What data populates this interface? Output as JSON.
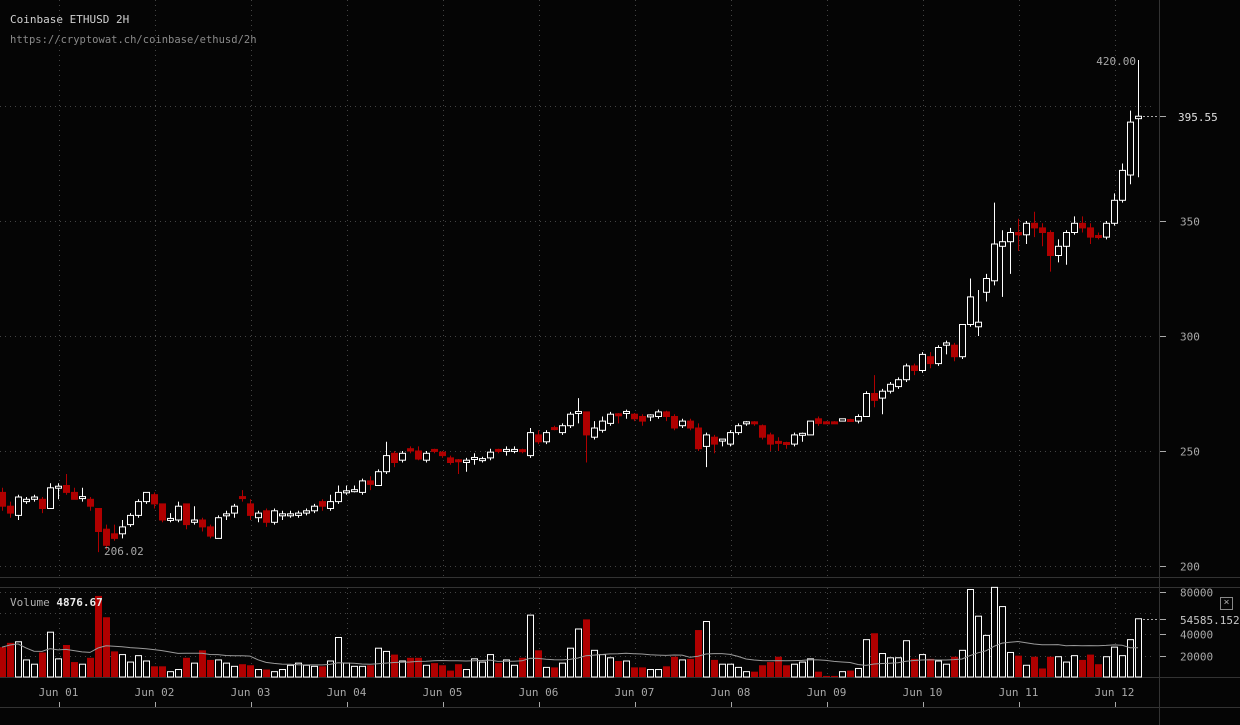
{
  "header": {
    "title": "Coinbase ETHUSD 2H",
    "url": "https://cryptowat.ch/coinbase/ethusd/2h"
  },
  "volume_pane": {
    "label": "Volume",
    "value": "4876.67",
    "close_icon": "close-icon",
    "close_glyph": "×"
  },
  "colors": {
    "background": "#050505",
    "up": "#ffffff",
    "down": "#b00000",
    "grid": "#444444",
    "text": "#a8a8a8",
    "ma": "#9a9a9a"
  },
  "chart_data": {
    "type": "candlestick",
    "title": "Coinbase ETHUSD 2H",
    "interval": "2H",
    "price_axis": {
      "ticks": [
        200,
        250,
        300,
        350
      ],
      "gridlines": [
        200,
        250,
        300,
        350,
        400
      ],
      "current_price": "395.55",
      "current_value": 395.55
    },
    "annotations": {
      "high_label": "420.00",
      "high_index": 142,
      "low_label": "206.02",
      "low_index": 12
    },
    "x_ticks": [
      "Jun 01",
      "Jun 02",
      "Jun 03",
      "Jun 04",
      "Jun 05",
      "Jun 06",
      "Jun 07",
      "Jun 08",
      "Jun 09",
      "Jun 10",
      "Jun 11",
      "Jun 12"
    ],
    "x_tick_candle_index": [
      8,
      20,
      32,
      44,
      56,
      68,
      80,
      92,
      104,
      116,
      128,
      140
    ],
    "candles_ohlc": [
      [
        232,
        234,
        224,
        226
      ],
      [
        226,
        228,
        221,
        223
      ],
      [
        222,
        231,
        220,
        230
      ],
      [
        228,
        230,
        227,
        229
      ],
      [
        229,
        231,
        228,
        230
      ],
      [
        229,
        230,
        223,
        225
      ],
      [
        225,
        236,
        225,
        234
      ],
      [
        234,
        236,
        229,
        234.5
      ],
      [
        235,
        240,
        231,
        232
      ],
      [
        232,
        234,
        229,
        229
      ],
      [
        229.5,
        234,
        228,
        230
      ],
      [
        229,
        230,
        224,
        226
      ],
      [
        225,
        225,
        206.02,
        215
      ],
      [
        216,
        218,
        207,
        209
      ],
      [
        214,
        218,
        211,
        212
      ],
      [
        214,
        220,
        212,
        217
      ],
      [
        218,
        223,
        217,
        222
      ],
      [
        222,
        229,
        221,
        228
      ],
      [
        228,
        232,
        227,
        232
      ],
      [
        231,
        232,
        225,
        227
      ],
      [
        227,
        227,
        219,
        220
      ],
      [
        220,
        223,
        219,
        220.5
      ],
      [
        220,
        228,
        219,
        226
      ],
      [
        227,
        227,
        216,
        218
      ],
      [
        219,
        226,
        218,
        220
      ],
      [
        220,
        221,
        215,
        217
      ],
      [
        217,
        218,
        212,
        213
      ],
      [
        212,
        222,
        212,
        221
      ],
      [
        222,
        224,
        220,
        222.5
      ],
      [
        223,
        227,
        221,
        226
      ],
      [
        230,
        233,
        228,
        229.5
      ],
      [
        227,
        229,
        220,
        222
      ],
      [
        221,
        224,
        219,
        223
      ],
      [
        224,
        225,
        217,
        219
      ],
      [
        219,
        225,
        218,
        224
      ],
      [
        222,
        224,
        220,
        222.5
      ],
      [
        222,
        224,
        221,
        222.5
      ],
      [
        222,
        224,
        221,
        223
      ],
      [
        223,
        225,
        222,
        224
      ],
      [
        224,
        227,
        223,
        226
      ],
      [
        228,
        229,
        224,
        226
      ],
      [
        225,
        231,
        224,
        228
      ],
      [
        228,
        235,
        227,
        232
      ],
      [
        232,
        235,
        231,
        232.5
      ],
      [
        232.5,
        235,
        232,
        233
      ],
      [
        232,
        238,
        231,
        237
      ],
      [
        237,
        239,
        233,
        235.5
      ],
      [
        235,
        242,
        235,
        241
      ],
      [
        241,
        254,
        240,
        248
      ],
      [
        249,
        250,
        243,
        245
      ],
      [
        246,
        250,
        245,
        249
      ],
      [
        251,
        252,
        249,
        250
      ],
      [
        250,
        252,
        246,
        246.5
      ],
      [
        246,
        250,
        245,
        249
      ],
      [
        250.5,
        251,
        249,
        250
      ],
      [
        249.5,
        250,
        247,
        248
      ],
      [
        247,
        248,
        244,
        245
      ],
      [
        246,
        246.5,
        240,
        245.5
      ],
      [
        245,
        247,
        241,
        246
      ],
      [
        246.5,
        249,
        244,
        247
      ],
      [
        246,
        247.5,
        245,
        246.5
      ],
      [
        247,
        251,
        246,
        249.5
      ],
      [
        250.5,
        251,
        249,
        250
      ],
      [
        250,
        252,
        248,
        250.5
      ],
      [
        250,
        252,
        249,
        250.5
      ],
      [
        250.5,
        251,
        249,
        249.8
      ],
      [
        248,
        260,
        247,
        258
      ],
      [
        257,
        259,
        253,
        254
      ],
      [
        254,
        259,
        253,
        258
      ],
      [
        260,
        261,
        259,
        259.5
      ],
      [
        258,
        262,
        257,
        261
      ],
      [
        261,
        267,
        260,
        266
      ],
      [
        266.5,
        273,
        262,
        267
      ],
      [
        267,
        267,
        245,
        257
      ],
      [
        256,
        263,
        255,
        260
      ],
      [
        259,
        265,
        258,
        263
      ],
      [
        262,
        267,
        261,
        266
      ],
      [
        266,
        266.5,
        262,
        265.5
      ],
      [
        266.5,
        268,
        264,
        267
      ],
      [
        266,
        266.5,
        263,
        264
      ],
      [
        265,
        266,
        261,
        263
      ],
      [
        265,
        266,
        263,
        265.5
      ],
      [
        265,
        268,
        264,
        267
      ],
      [
        267,
        267.5,
        263,
        265
      ],
      [
        265,
        266,
        259,
        260
      ],
      [
        261,
        264,
        260,
        263
      ],
      [
        263,
        264,
        259,
        260
      ],
      [
        260,
        262,
        250,
        251
      ],
      [
        252,
        258,
        243,
        257
      ],
      [
        256,
        257,
        249,
        253
      ],
      [
        254.5,
        255,
        252,
        255
      ],
      [
        253,
        259,
        252,
        258
      ],
      [
        258,
        262,
        257,
        261
      ],
      [
        262,
        263,
        261,
        262.5
      ],
      [
        262.5,
        263,
        261,
        262
      ],
      [
        261,
        261.5,
        255,
        256
      ],
      [
        257,
        258,
        250,
        253
      ],
      [
        254,
        256,
        250,
        253.5
      ],
      [
        253.5,
        254,
        251,
        253
      ],
      [
        253,
        258,
        252,
        257
      ],
      [
        257,
        258,
        254,
        257.5
      ],
      [
        257,
        263,
        257,
        263
      ],
      [
        264,
        265,
        261,
        262
      ],
      [
        262.5,
        263,
        262,
        262
      ],
      [
        262.5,
        263,
        262,
        262
      ],
      [
        263,
        264,
        263,
        264
      ],
      [
        263.5,
        264,
        263,
        263
      ],
      [
        263,
        266,
        262,
        265
      ],
      [
        265,
        276,
        265,
        275
      ],
      [
        275,
        283,
        269,
        272
      ],
      [
        273,
        277,
        266,
        276
      ],
      [
        276,
        280,
        275,
        279
      ],
      [
        278,
        282,
        277,
        281
      ],
      [
        281,
        288,
        280,
        287
      ],
      [
        287,
        288,
        283,
        285
      ],
      [
        285,
        293,
        284,
        292
      ],
      [
        291,
        293,
        286,
        288
      ],
      [
        288,
        296,
        287,
        295
      ],
      [
        296,
        298,
        292,
        297
      ],
      [
        296,
        297,
        289,
        291
      ],
      [
        291,
        305,
        290,
        305
      ],
      [
        305,
        325,
        304,
        317
      ],
      [
        304,
        320,
        300,
        306
      ],
      [
        319,
        327,
        315,
        325
      ],
      [
        324,
        358,
        322,
        340
      ],
      [
        339,
        346,
        317,
        341
      ],
      [
        341,
        347,
        327,
        345
      ],
      [
        345,
        351,
        337,
        344
      ],
      [
        344,
        350,
        340,
        349
      ],
      [
        349,
        354,
        343,
        347
      ],
      [
        347,
        349,
        339,
        345
      ],
      [
        345,
        346,
        328,
        335
      ],
      [
        335,
        342,
        332,
        339
      ],
      [
        339,
        346,
        331,
        345
      ],
      [
        345,
        352,
        344,
        349
      ],
      [
        349,
        352,
        345,
        347
      ],
      [
        347,
        349,
        340,
        343
      ],
      [
        343.5,
        345,
        342,
        343
      ],
      [
        343,
        350,
        342,
        349
      ],
      [
        349,
        362,
        348,
        359
      ],
      [
        359,
        375,
        358,
        372
      ],
      [
        370,
        398,
        366,
        393
      ],
      [
        394.5,
        420,
        369,
        395.55
      ]
    ],
    "volume_axis": {
      "ticks": [
        20000,
        40000,
        80000
      ],
      "gridlines": [
        20000,
        40000,
        60000,
        80000
      ],
      "current_label": "54585.152",
      "current_value": 54585.152
    },
    "volume_thousands": [
      28,
      32,
      33,
      16,
      12,
      23,
      42,
      17,
      30,
      14,
      12,
      18,
      76,
      56,
      24,
      21,
      14,
      20,
      15,
      10,
      10,
      5,
      7,
      18,
      13,
      25,
      16,
      16,
      13,
      10,
      12,
      11,
      7,
      7,
      5,
      7,
      11,
      13,
      11,
      10,
      10,
      15,
      37,
      13,
      10,
      10,
      11,
      27,
      24,
      21,
      15,
      18,
      18,
      11,
      13,
      11,
      6,
      12,
      7,
      17,
      14,
      21,
      13,
      16,
      11,
      18,
      58,
      25,
      9,
      9,
      13,
      27,
      45,
      54,
      25,
      21,
      18,
      15,
      15,
      9,
      9,
      7,
      7,
      10,
      19,
      16,
      17,
      44,
      52,
      16,
      12,
      12,
      9,
      5,
      5,
      11,
      14,
      19,
      11,
      12,
      14,
      17,
      5,
      1,
      1,
      5,
      6,
      8,
      35,
      41,
      22,
      18,
      18,
      34,
      17,
      21,
      17,
      15,
      12,
      19,
      25,
      82,
      57,
      39,
      84,
      66,
      23,
      20,
      11,
      19,
      8,
      19,
      19,
      14,
      20,
      16,
      21,
      12,
      19,
      28,
      20,
      35,
      54.585
    ],
    "volume_ma_period": 20
  }
}
